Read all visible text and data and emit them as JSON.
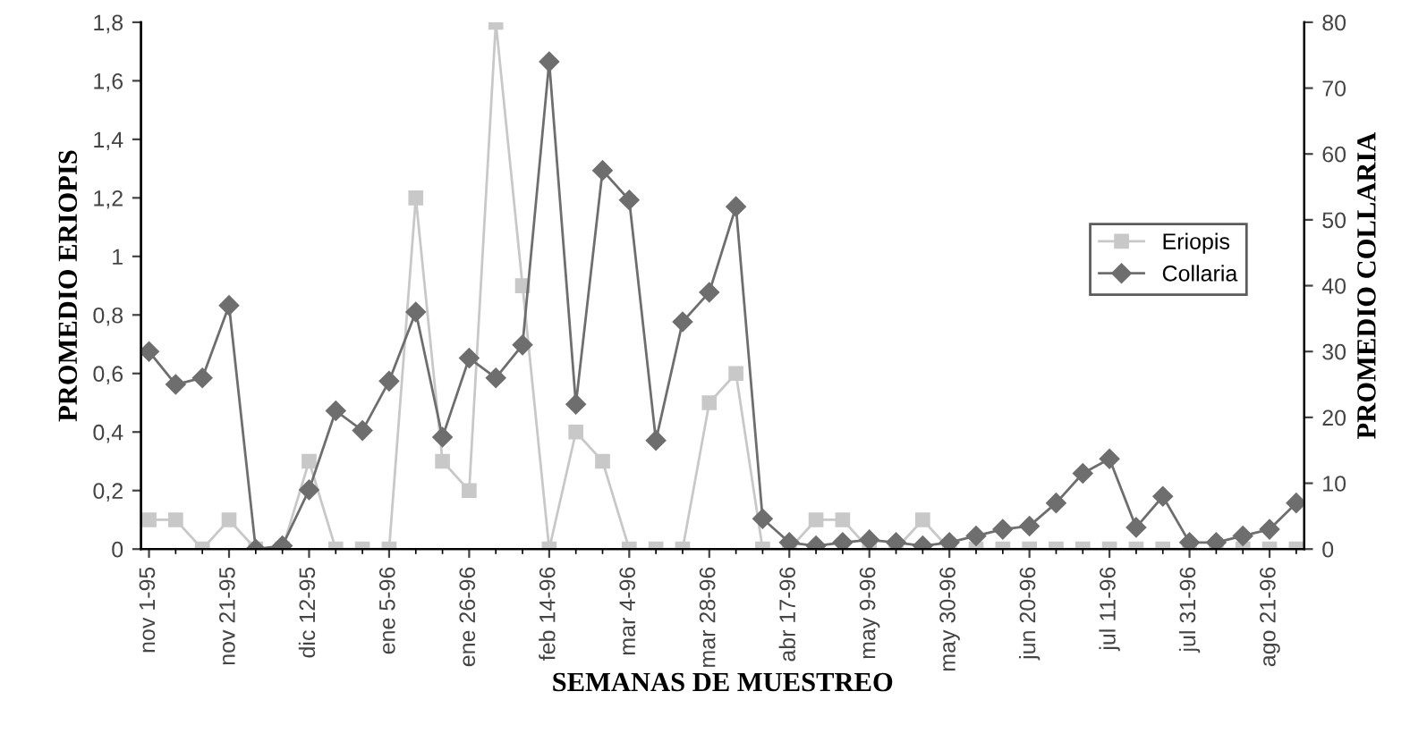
{
  "chart_data": {
    "type": "line",
    "xlabel": "SEMANAS DE MUESTREO",
    "ylabel": "PROMEDIO ERIOPIS",
    "y2label": "PROMEDIO COLLARIA",
    "categories": [
      "nov 1-95",
      null,
      null,
      "nov 21-95",
      null,
      null,
      "dic 12-95",
      null,
      null,
      "ene 5-96",
      null,
      null,
      "ene 26-96",
      null,
      null,
      "feb 14-96",
      null,
      null,
      "mar 4-96",
      null,
      null,
      "mar 28-96",
      null,
      null,
      "abr 17-96",
      null,
      null,
      "may 9-96",
      null,
      null,
      "may 30-96",
      null,
      null,
      "jun 20-96",
      null,
      null,
      "jul 11-96",
      null,
      null,
      "jul 31-96",
      null,
      null,
      "ago 21-96",
      null
    ],
    "series": [
      {
        "name": "Eriopis",
        "color": "#c8c8c8",
        "marker": "square",
        "values": [
          0.1,
          0.1,
          0,
          0.1,
          0,
          0,
          0.3,
          0,
          0,
          0,
          1.2,
          0.3,
          0.2,
          1.8,
          0.9,
          0,
          0.4,
          0.3,
          0,
          0,
          0,
          0.5,
          0.6,
          0,
          0,
          0.1,
          0.1,
          0,
          0,
          0.1,
          0,
          0,
          0,
          0,
          0,
          0,
          0,
          0,
          0,
          0,
          0,
          0,
          0,
          0
        ]
      },
      {
        "name": "Collaria",
        "color": "#6e6e6e",
        "marker": "diamond",
        "axis": "y2",
        "values": [
          30,
          25,
          26,
          37,
          0,
          0.5,
          9,
          21,
          18,
          25.5,
          36,
          17,
          29,
          26,
          31,
          74,
          22,
          57.5,
          53,
          16.5,
          34.5,
          39,
          52,
          4.6,
          1,
          0.5,
          1,
          1.4,
          1,
          0.5,
          1,
          2,
          3,
          3.5,
          7,
          11.5,
          13.7,
          3.3,
          8,
          1,
          1,
          2,
          3,
          7
        ]
      }
    ],
    "ylim": [
      0,
      1.8
    ],
    "yticks": [
      0,
      {
        "value": 0.2,
        "label": "0,2"
      },
      {
        "value": 0.4,
        "label": "0,4"
      },
      {
        "value": 0.6,
        "label": "0,6"
      },
      {
        "value": 0.8,
        "label": "0,8"
      },
      1,
      {
        "value": 1.2,
        "label": "1,2"
      },
      {
        "value": 1.4,
        "label": "1,4"
      },
      {
        "value": 1.6,
        "label": "1,6"
      },
      {
        "value": 1.8,
        "label": "1,8"
      }
    ],
    "y2lim": [
      0,
      80
    ],
    "y2ticks": [
      0,
      10,
      20,
      30,
      40,
      50,
      60,
      70,
      80
    ],
    "grid": false,
    "legend": "right"
  }
}
